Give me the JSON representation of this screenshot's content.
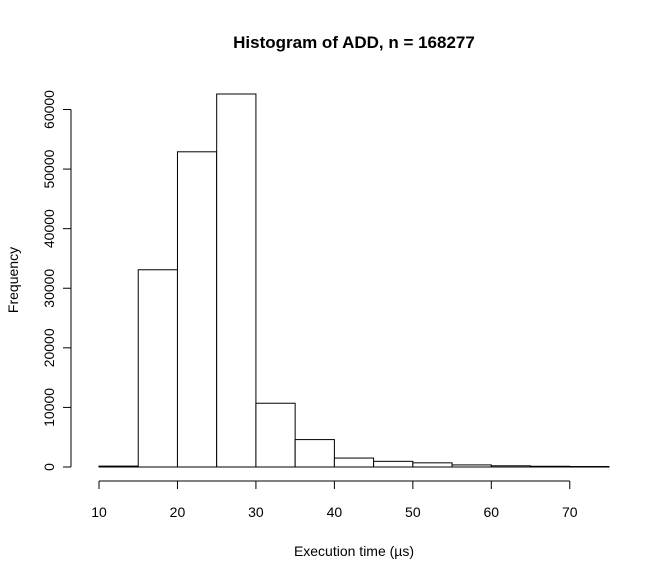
{
  "chart_data": {
    "type": "bar",
    "title": "Histogram of ADD, n = 168277",
    "xlabel": "Execution time (µs)",
    "ylabel": "Frequency",
    "bin_edges": [
      10,
      15,
      20,
      25,
      30,
      35,
      40,
      45,
      50,
      55,
      60,
      65,
      70,
      75
    ],
    "values": [
      150,
      33100,
      52900,
      62600,
      10700,
      4600,
      1500,
      950,
      700,
      350,
      200,
      120,
      80
    ],
    "xlim": [
      10,
      75
    ],
    "ylim": [
      0,
      62600
    ],
    "x_ticks": [
      10,
      20,
      30,
      40,
      50,
      60,
      70
    ],
    "y_ticks": [
      0,
      10000,
      20000,
      30000,
      40000,
      50000,
      60000
    ],
    "x_tick_labels": [
      "10",
      "20",
      "30",
      "40",
      "50",
      "60",
      "70"
    ],
    "y_tick_labels": [
      "0",
      "10000",
      "20000",
      "30000",
      "40000",
      "50000",
      "60000"
    ],
    "grid": false,
    "colors": {
      "bar_fill": "#ffffff",
      "bar_stroke": "#000000"
    }
  }
}
